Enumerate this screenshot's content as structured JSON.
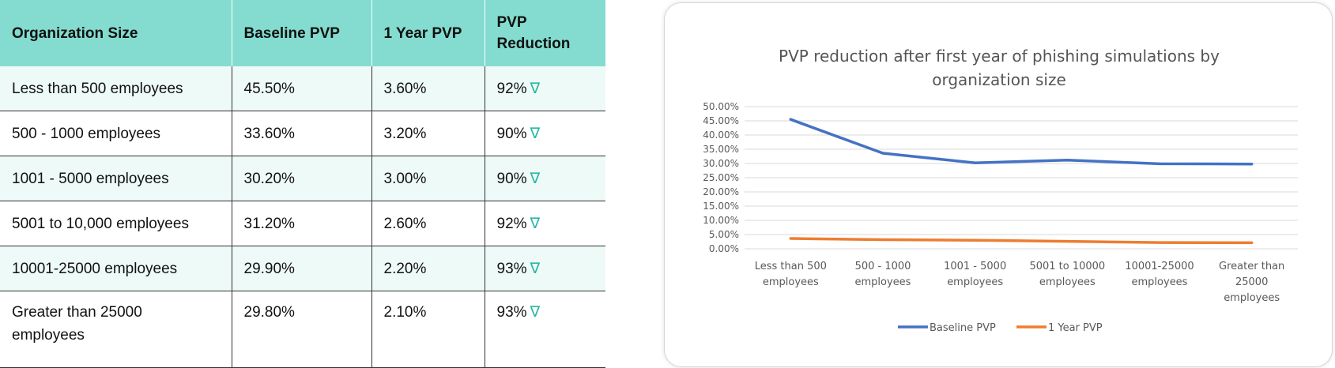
{
  "table": {
    "headers": [
      "Organization Size",
      "Baseline PVP",
      "1 Year PVP",
      "PVP Reduction"
    ],
    "rows": [
      {
        "size": "Less than 500 employees",
        "baseline": "45.50%",
        "one_year": "3.60%",
        "reduction": "92%"
      },
      {
        "size": "500 - 1000 employees",
        "baseline": "33.60%",
        "one_year": "3.20%",
        "reduction": "90%"
      },
      {
        "size": "1001 - 5000 employees",
        "baseline": "30.20%",
        "one_year": "3.00%",
        "reduction": "90%"
      },
      {
        "size": "5001 to 10,000 employees",
        "baseline": "31.20%",
        "one_year": "2.60%",
        "reduction": "92%"
      },
      {
        "size": "10001-25000 employees",
        "baseline": "29.90%",
        "one_year": "2.20%",
        "reduction": "93%"
      },
      {
        "size": "Greater than 25000 employees",
        "baseline": "29.80%",
        "one_year": "2.10%",
        "reduction": "93%"
      }
    ],
    "reduction_icon": "triangle-down-outline-icon",
    "reduction_icon_color": "#2bb7a3",
    "header_color": "#83dccf"
  },
  "chart_data": {
    "type": "line",
    "title": "PVP reduction after first year of phishing simulations by organization size",
    "categories": [
      "Less than 500 employees",
      "500 - 1000 employees",
      "1001 - 5000 employees",
      "5001 to 10000 employees",
      "10001-25000 employees",
      "Greater than 25000 employees"
    ],
    "category_label_lines": [
      [
        "Less than 500",
        "employees"
      ],
      [
        "500 - 1000",
        "employees"
      ],
      [
        "1001 - 5000",
        "employees"
      ],
      [
        "5001 to 10000",
        "employees"
      ],
      [
        "10001-25000",
        "employees"
      ],
      [
        "Greater than",
        "25000",
        "employees"
      ]
    ],
    "series": [
      {
        "name": "Baseline PVP",
        "values": [
          45.5,
          33.6,
          30.2,
          31.2,
          29.9,
          29.8
        ],
        "color": "#4472c4"
      },
      {
        "name": "1 Year PVP",
        "values": [
          3.6,
          3.2,
          3.0,
          2.6,
          2.2,
          2.1
        ],
        "color": "#ed7d31"
      }
    ],
    "ylim": [
      0,
      50
    ],
    "ytick_labels": [
      "0.00%",
      "5.00%",
      "10.00%",
      "15.00%",
      "20.00%",
      "25.00%",
      "30.00%",
      "35.00%",
      "40.00%",
      "45.00%",
      "50.00%"
    ],
    "grid": true,
    "legend_position": "bottom",
    "xlabel": "",
    "ylabel": ""
  }
}
